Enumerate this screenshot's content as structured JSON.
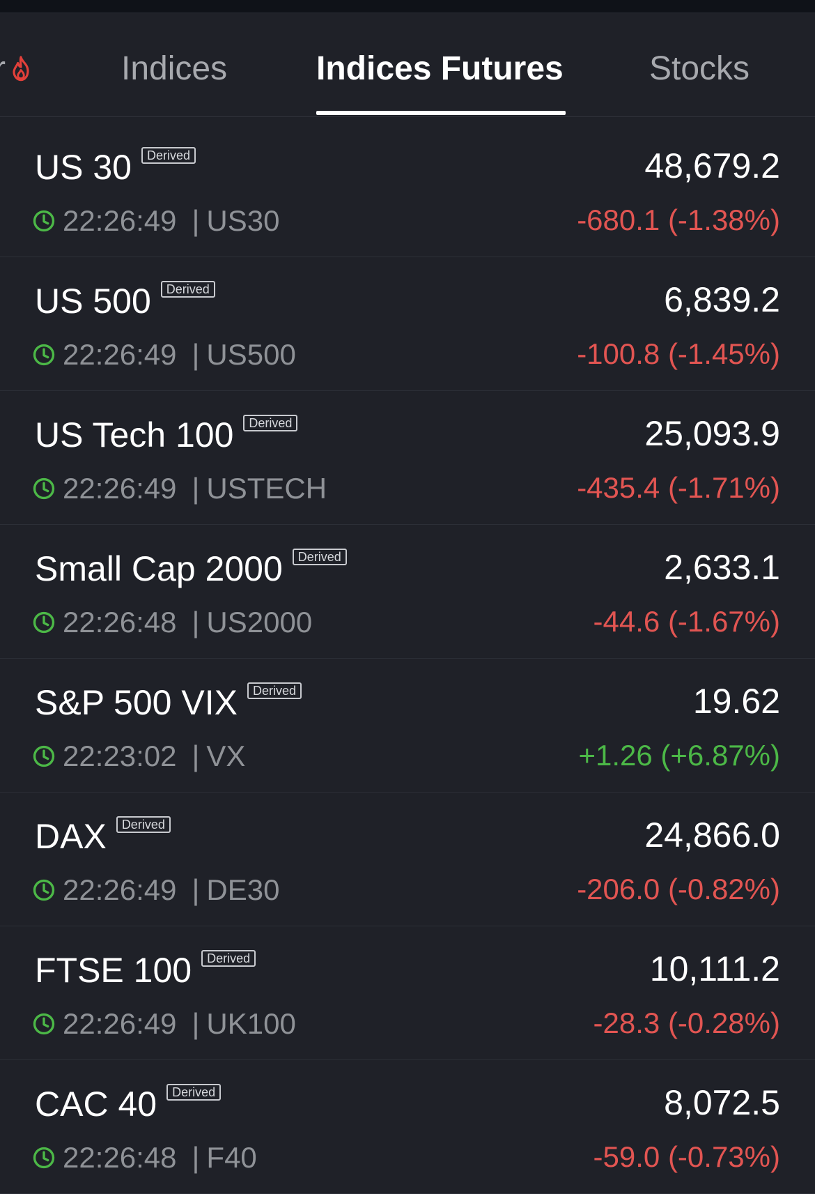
{
  "tabs": [
    {
      "label": "r",
      "partial": true,
      "icon": "fire-icon"
    },
    {
      "label": "Indices",
      "active": false
    },
    {
      "label": "Indices Futures",
      "active": true
    },
    {
      "label": "Stocks",
      "active": false
    }
  ],
  "colors": {
    "background": "#1f2128",
    "negative": "#e25552",
    "positive": "#4cb847",
    "clock": "#4cb847",
    "fire": "#e2403a"
  },
  "badge_label": "Derived",
  "rows": [
    {
      "name": "US 30",
      "badge": "Derived",
      "time": "22:26:49",
      "symbol": "US30",
      "price": "48,679.2",
      "change": "-680.1 (-1.38%)",
      "direction": "down"
    },
    {
      "name": "US 500",
      "badge": "Derived",
      "time": "22:26:49",
      "symbol": "US500",
      "price": "6,839.2",
      "change": "-100.8 (-1.45%)",
      "direction": "down"
    },
    {
      "name": "US Tech 100",
      "badge": "Derived",
      "time": "22:26:49",
      "symbol": "USTECH",
      "price": "25,093.9",
      "change": "-435.4 (-1.71%)",
      "direction": "down"
    },
    {
      "name": "Small Cap 2000",
      "badge": "Derived",
      "time": "22:26:48",
      "symbol": "US2000",
      "price": "2,633.1",
      "change": "-44.6 (-1.67%)",
      "direction": "down"
    },
    {
      "name": "S&P 500 VIX",
      "badge": "Derived",
      "time": "22:23:02",
      "symbol": "VX",
      "price": "19.62",
      "change": "+1.26 (+6.87%)",
      "direction": "up"
    },
    {
      "name": "DAX",
      "badge": "Derived",
      "time": "22:26:49",
      "symbol": "DE30",
      "price": "24,866.0",
      "change": "-206.0 (-0.82%)",
      "direction": "down"
    },
    {
      "name": "FTSE 100",
      "badge": "Derived",
      "time": "22:26:49",
      "symbol": "UK100",
      "price": "10,111.2",
      "change": "-28.3 (-0.28%)",
      "direction": "down"
    },
    {
      "name": "CAC 40",
      "badge": "Derived",
      "time": "22:26:48",
      "symbol": "F40",
      "price": "8,072.5",
      "change": "-59.0 (-0.73%)",
      "direction": "down"
    }
  ]
}
